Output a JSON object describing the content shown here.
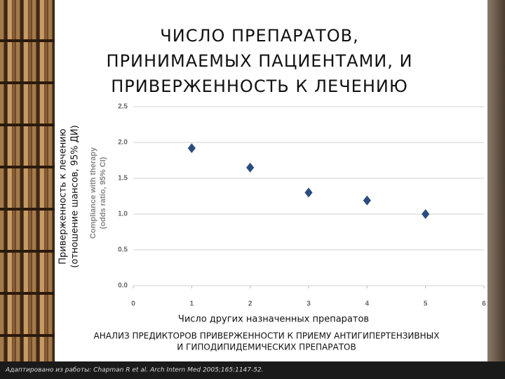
{
  "chart_data": {
    "type": "scatter",
    "title": [
      "ЧИСЛО ПРЕПАРАТОВ,",
      "ПРИНИМАЕМЫХ ПАЦИЕНТАМИ, И",
      "ПРИВЕРЖЕННОСТЬ К ЛЕЧЕНИЮ"
    ],
    "y_label": [
      "Compliance with therapy",
      "(odds ratio, 95% CI)"
    ],
    "y_label_ru": [
      "Приверженность к лечению",
      "(отношение шансов, 95% ДИ)"
    ],
    "x_label": "Число других назначенных препаратов",
    "subtitle": [
      "АНАЛИЗ ПРЕДИКТОРОВ ПРИВЕРЖЕННОСТИ К ПРИЕМУ АНТИГИПЕРТЕНЗИВНЫХ",
      "И ГИПОДИПИДЕМИЧЕСКИХ ПРЕПАРАТОВ"
    ],
    "source": "Адаптировано из работы: Chapman R et al. Arch Intern Med 2005;165:1147-52.",
    "x": [
      1,
      2,
      3,
      4,
      5
    ],
    "values": [
      1.92,
      1.65,
      1.3,
      1.19,
      1.0
    ],
    "color": "#2b4c7e",
    "xlim": [
      0,
      6
    ],
    "xticks": [
      0,
      1,
      2,
      3,
      4,
      5,
      6
    ],
    "ylim": [
      0,
      2.5
    ],
    "yticks": [
      {
        "value": 0,
        "label": "0.0"
      },
      {
        "value": 0.5,
        "label": "0.5"
      },
      {
        "value": 1,
        "label": "1.0"
      },
      {
        "value": 1.5,
        "label": "1.5"
      },
      {
        "value": 2,
        "label": "2.0"
      },
      {
        "value": 2.5,
        "label": "2.5"
      }
    ],
    "grid": true
  }
}
